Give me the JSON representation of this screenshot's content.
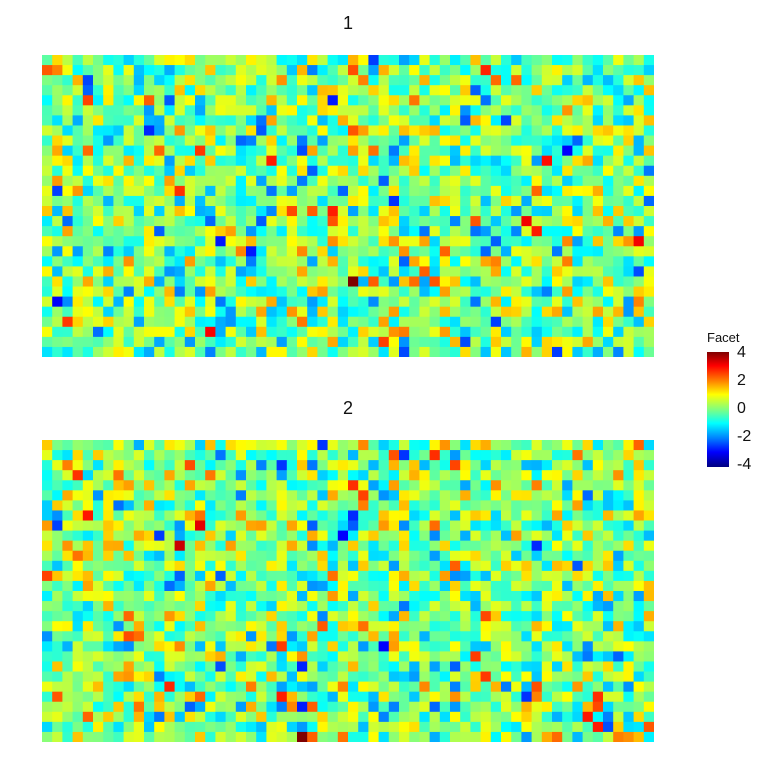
{
  "chart_data": {
    "type": "heatmap",
    "facets": [
      {
        "title": "1",
        "rows": 30,
        "cols": 60,
        "seed": 11
      },
      {
        "title": "2",
        "rows": 30,
        "cols": 60,
        "seed": 29
      }
    ],
    "colorbar": {
      "title": "Facet",
      "range": [
        -4,
        4
      ],
      "ticks": [
        "4",
        "2",
        "0",
        "-2",
        "-4"
      ],
      "colors": [
        "#00007f",
        "#0000ff",
        "#0080ff",
        "#00ffff",
        "#80ff80",
        "#ffff00",
        "#ff8000",
        "#ff0000",
        "#7f0000"
      ]
    }
  }
}
